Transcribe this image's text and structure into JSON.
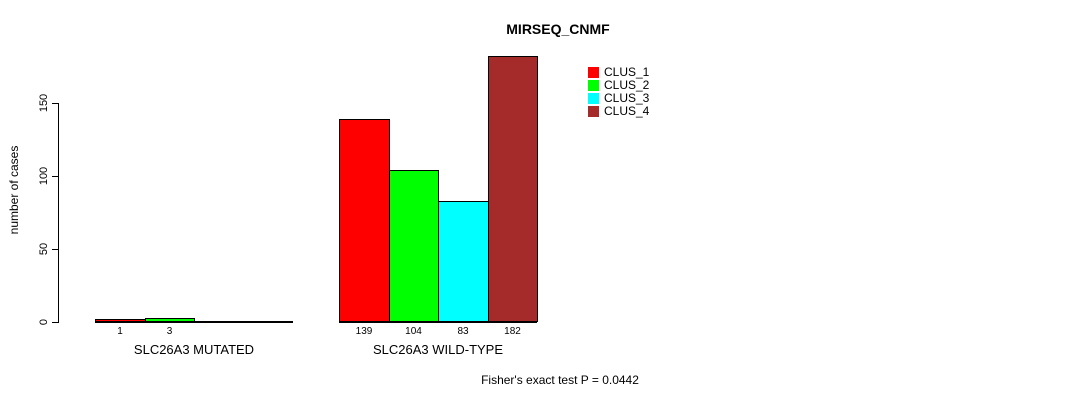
{
  "chart_data": {
    "type": "bar",
    "title": "MIRSEQ_CNMF",
    "ylabel": "number of cases",
    "xlabel": "",
    "ylim": [
      0,
      150
    ],
    "yticks": [
      0,
      50,
      100,
      150
    ],
    "grid": false,
    "legend_position": "top-right",
    "groups": [
      "SLC26A3 MUTATED",
      "SLC26A3 WILD-TYPE"
    ],
    "series": [
      {
        "name": "CLUS_1",
        "color": "#FF0000",
        "values": [
          1,
          139
        ]
      },
      {
        "name": "CLUS_2",
        "color": "#00FF00",
        "values": [
          3,
          104
        ]
      },
      {
        "name": "CLUS_3",
        "color": "#00FFFF",
        "values": [
          0,
          83
        ]
      },
      {
        "name": "CLUS_4",
        "color": "#A52A2A",
        "values": [
          0,
          182
        ]
      }
    ],
    "bar_value_labels": {
      "mutated": [
        1,
        3
      ],
      "wild_type": [
        139,
        104,
        83,
        182
      ]
    }
  },
  "colors": {
    "axis": "#000000",
    "text": "#000000",
    "background": "#FFFFFF"
  },
  "footer": {
    "stat_text": "Fisher's exact test P = 0.0442"
  }
}
